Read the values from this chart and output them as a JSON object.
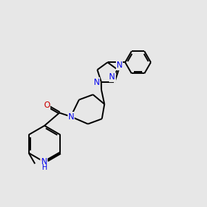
{
  "bg_color": [
    0.906,
    0.906,
    0.906
  ],
  "bond_lw": 1.5,
  "bond_color": "#000000",
  "N_color": "#0000ee",
  "O_color": "#cc0000",
  "C_color": "#000000",
  "font_size": 8.5,
  "xlim": [
    0,
    10
  ],
  "ylim": [
    0,
    10
  ],
  "figsize": [
    3.0,
    3.0
  ],
  "dpi": 100
}
